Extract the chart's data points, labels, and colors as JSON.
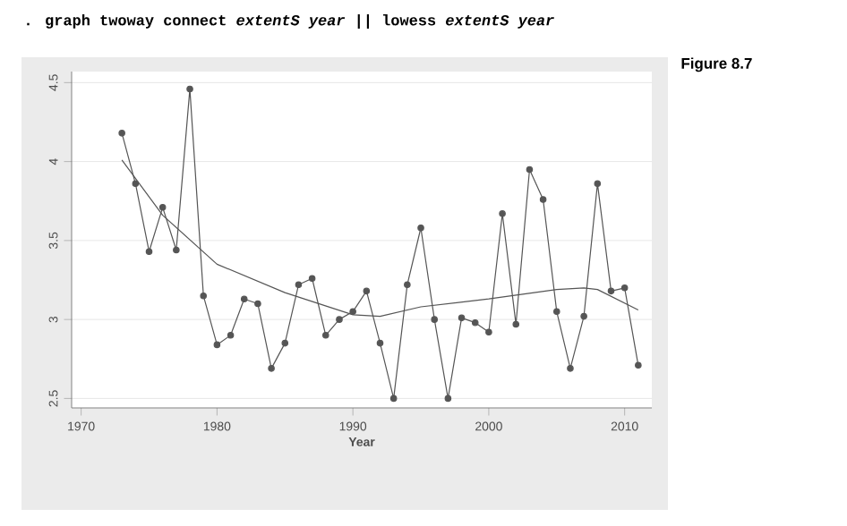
{
  "chart_data": {
    "type": "line",
    "title": ". graph twoway connect *extentS* *year* || lowess *extentS* *year*",
    "xlabel": "Year",
    "annotations": [
      "Figure 8.7"
    ],
    "xlim": [
      1969.3,
      2012
    ],
    "xticks": [
      1970,
      1980,
      1990,
      2000,
      2010
    ],
    "ylim": [
      2.44,
      4.57
    ],
    "yticks": [
      2.5,
      3,
      3.5,
      4,
      4.5
    ],
    "grid": "y",
    "series": [
      {
        "marker": "circle",
        "color": "#555555",
        "x": [
          1973,
          1974,
          1975,
          1976,
          1977,
          1978,
          1979,
          1980,
          1981,
          1982,
          1983,
          1984,
          1985,
          1986,
          1987,
          1988,
          1989,
          1990,
          1991,
          1992,
          1993,
          1994,
          1995,
          1996,
          1997,
          1998,
          1999,
          2000,
          2001,
          2002,
          2003,
          2004,
          2005,
          2006,
          2007,
          2008,
          2009,
          2010,
          2011
        ],
        "values": [
          4.18,
          3.86,
          3.43,
          3.71,
          3.44,
          4.46,
          3.15,
          2.84,
          2.9,
          3.13,
          3.1,
          2.69,
          2.85,
          3.22,
          3.26,
          2.9,
          3.0,
          3.05,
          3.18,
          2.85,
          2.5,
          3.22,
          3.58,
          3.0,
          2.5,
          3.01,
          2.98,
          2.92,
          3.67,
          2.97,
          3.95,
          3.76,
          3.05,
          2.69,
          3.02,
          3.86,
          3.18,
          3.2,
          2.71
        ]
      },
      {
        "marker": "none",
        "color": "#555555",
        "x": [
          1973,
          1976,
          1980,
          1985,
          1990,
          1992,
          1995,
          2000,
          2005,
          2007,
          2008,
          2011
        ],
        "values": [
          4.01,
          3.66,
          3.35,
          3.17,
          3.03,
          3.02,
          3.08,
          3.13,
          3.19,
          3.2,
          3.19,
          3.06
        ]
      }
    ]
  }
}
